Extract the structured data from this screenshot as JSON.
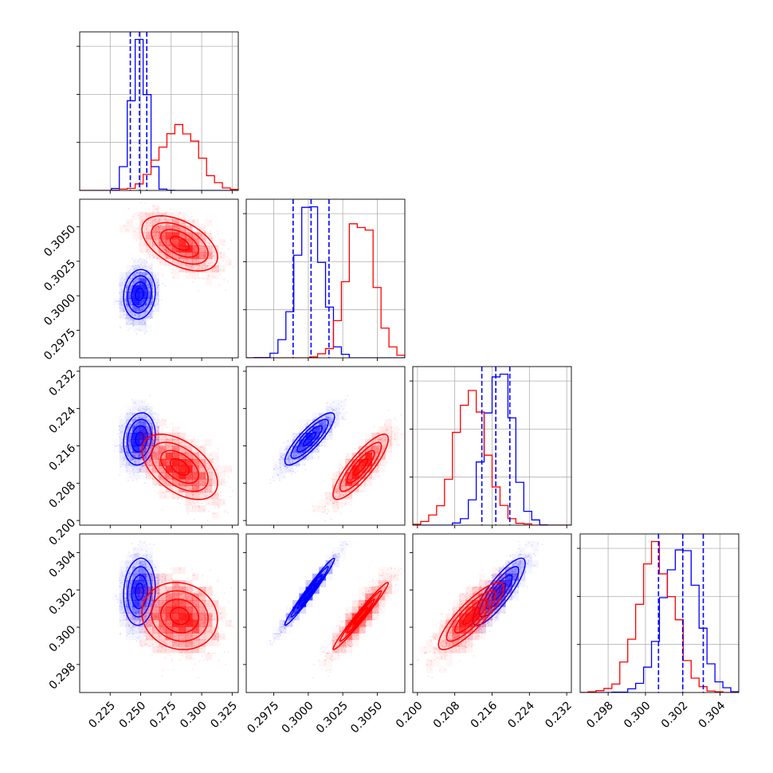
{
  "colors": {
    "blue": "#0000ff",
    "red": "#ff0000",
    "grid": "#b0b0b0"
  },
  "chart_data": {
    "type": "corner",
    "parameters": [
      {
        "lim": [
          0.2,
          0.33
        ],
        "ticks": [
          0.225,
          0.25,
          0.275,
          0.3,
          0.325
        ],
        "tick_labels": [
          "0.225",
          "0.250",
          "0.275",
          "0.300",
          "0.325"
        ]
      },
      {
        "lim": [
          0.2955,
          0.307
        ],
        "ticks": [
          0.2975,
          0.3,
          0.3025,
          0.305
        ],
        "tick_labels": [
          "0.2975",
          "0.3000",
          "0.3025",
          "0.3050"
        ]
      },
      {
        "lim": [
          0.199,
          0.233
        ],
        "ticks": [
          0.2,
          0.208,
          0.216,
          0.224,
          0.232
        ],
        "tick_labels": [
          "0.200",
          "0.208",
          "0.216",
          "0.224",
          "0.232"
        ]
      },
      {
        "lim": [
          0.2965,
          0.305
        ],
        "ticks": [
          0.298,
          0.3,
          0.302,
          0.304
        ],
        "tick_labels": [
          "0.298",
          "0.300",
          "0.302",
          "0.304"
        ]
      }
    ],
    "series": [
      {
        "color": "#0000ff",
        "mean": [
          0.249,
          0.3001,
          0.2175,
          0.3019
        ],
        "sd": [
          0.0065,
          0.0009,
          0.0028,
          0.0009
        ],
        "corr": [
          [
            1,
            0.1,
            0.15,
            0.1
          ],
          [
            0.1,
            1,
            0.85,
            0.98
          ],
          [
            0.15,
            0.85,
            1,
            0.85
          ],
          [
            0.1,
            0.98,
            0.85,
            1
          ]
        ],
        "quantiles": [
          [
            0.2415,
            0.249,
            0.255
          ],
          [
            0.2989,
            0.3002,
            0.3015
          ],
          [
            0.2138,
            0.2168,
            0.2198
          ],
          [
            0.3007,
            0.302,
            0.3031
          ]
        ]
      },
      {
        "color": "#ff0000",
        "mean": [
          0.282,
          0.3038,
          0.2115,
          0.3006
        ],
        "sd": [
          0.0155,
          0.001,
          0.0035,
          0.0009
        ],
        "corr": [
          [
            1,
            -0.5,
            -0.5,
            -0.1
          ],
          [
            -0.5,
            1,
            0.85,
            0.98
          ],
          [
            -0.5,
            0.85,
            1,
            0.85
          ],
          [
            -0.1,
            0.98,
            0.85,
            1
          ]
        ]
      }
    ]
  }
}
